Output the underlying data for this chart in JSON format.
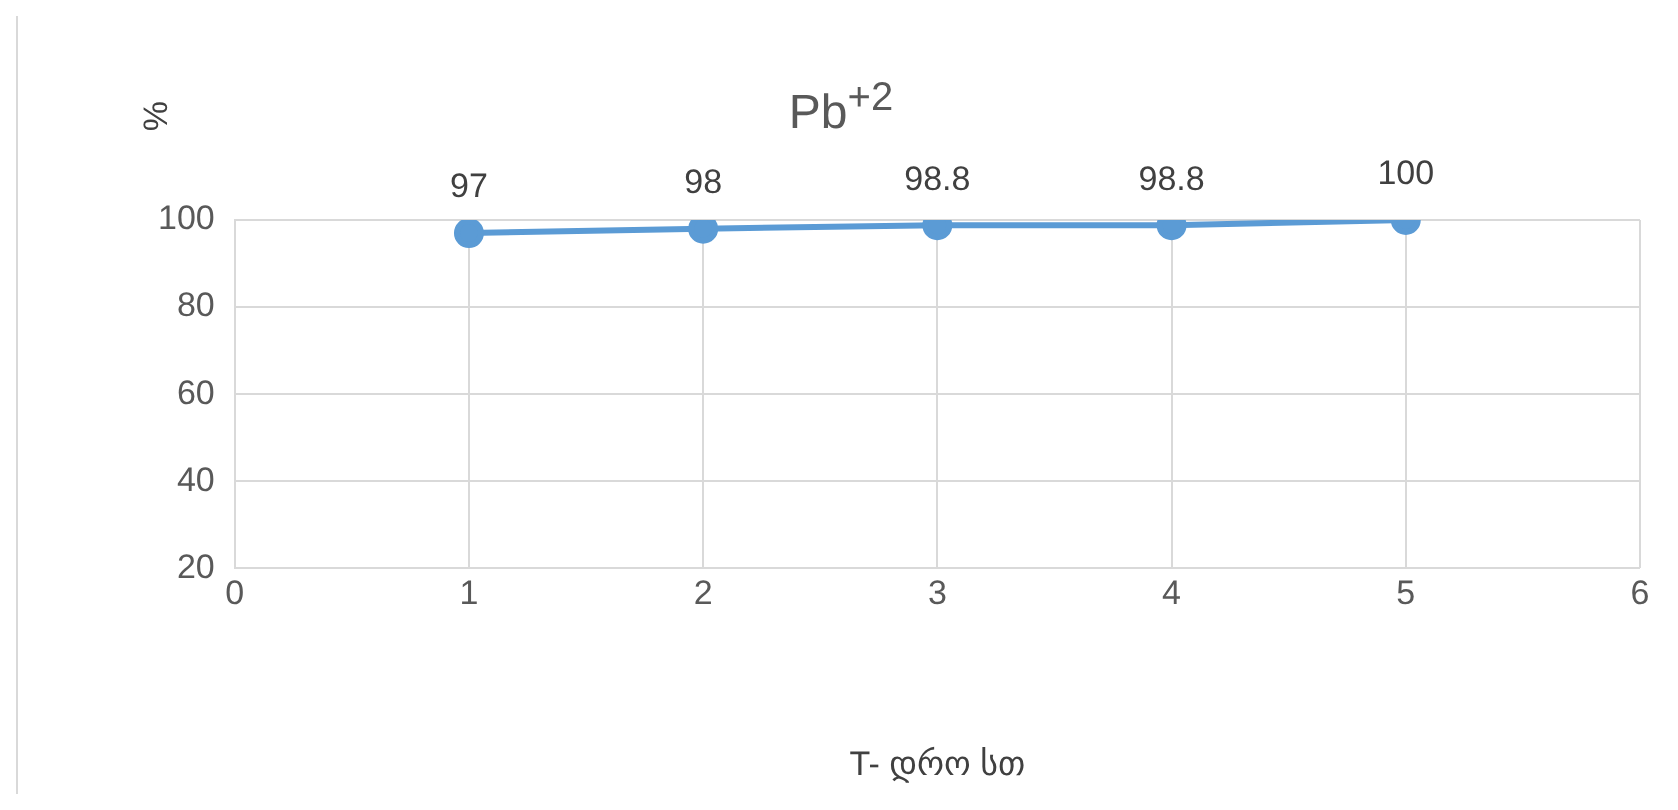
{
  "chart_data": {
    "type": "line",
    "title": "Pb$^{+2}$",
    "xlabel": "T- დრო სთ",
    "ylabel": "%",
    "x": [
      1,
      2,
      3,
      4,
      5
    ],
    "series": [
      {
        "color": "#5b9bd5",
        "values": [
          97,
          98,
          98.8,
          98.8,
          100
        ]
      }
    ],
    "xlim": [
      0,
      6
    ],
    "xticks": [
      0,
      1,
      2,
      3,
      4,
      5,
      6
    ],
    "ylim": [
      20,
      100
    ],
    "yticks": [
      20,
      40,
      60,
      80,
      100
    ],
    "grid": true,
    "legend": false,
    "marker": "circle",
    "line_style": "solid",
    "data_labels": true
  }
}
